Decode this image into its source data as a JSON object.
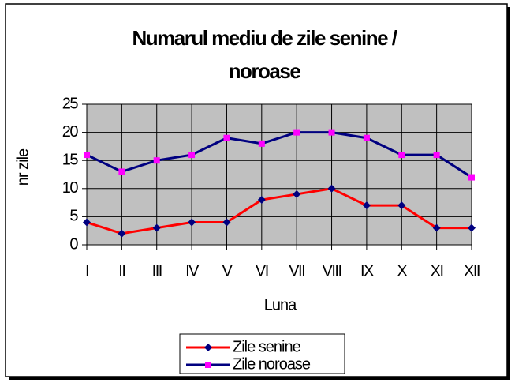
{
  "chart_data": {
    "type": "line",
    "title": [
      "Numarul mediu de zile senine /",
      "noroase"
    ],
    "x_label": "Luna",
    "y_label": "nr zile",
    "categories": [
      "I",
      "II",
      "III",
      "IV",
      "V",
      "VI",
      "VII",
      "VIII",
      "IX",
      "X",
      "XI",
      "XII"
    ],
    "series": [
      {
        "name": "Zile senine",
        "color": "#FF0000",
        "marker_color": "#000080",
        "marker": "diamond",
        "values": [
          4,
          2,
          3,
          4,
          4,
          8,
          9,
          10,
          7,
          7,
          3,
          3
        ]
      },
      {
        "name": "Zile noroase",
        "color": "#000080",
        "marker_color": "#FF00FF",
        "marker": "square",
        "values": [
          16,
          13,
          15,
          16,
          19,
          18,
          20,
          20,
          19,
          16,
          16,
          12
        ]
      }
    ],
    "ylim": [
      0,
      25
    ],
    "yticks": [
      0,
      5,
      10,
      15,
      20,
      25
    ],
    "grid": true,
    "legend": "bottom"
  }
}
